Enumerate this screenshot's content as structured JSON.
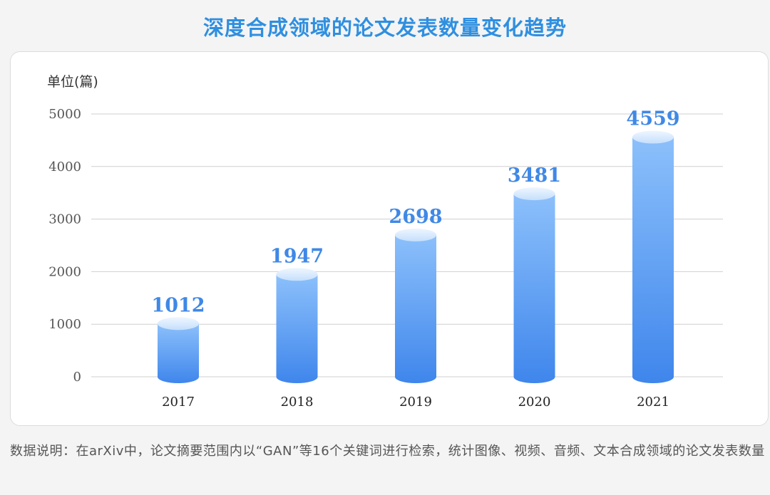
{
  "title": "深度合成领域的论文发表数量变化趋势",
  "note": "数据说明：在arXiv中，论文摘要范围内以“GAN”等16个关键词进行检索，统计图像、视频、音频、文本合成领域的论文发表数量",
  "colors": {
    "title": "#2f8fe0",
    "bar_top": "#8cc0fb",
    "bar_bottom": "#3f86ec",
    "data_label": "#3f88e6",
    "grid": "#cfcfcf"
  },
  "chart_data": {
    "type": "bar",
    "title": "深度合成领域的论文发表数量变化趋势",
    "ylabel": "单位(篇)",
    "xlabel": "",
    "categories": [
      "2017",
      "2018",
      "2019",
      "2020",
      "2021"
    ],
    "values": [
      1012,
      1947,
      2698,
      3481,
      4559
    ],
    "data_labels": [
      "1012",
      "1947",
      "2698",
      "3481",
      "4559"
    ],
    "yticks": [
      0,
      1000,
      2000,
      3000,
      4000,
      5000
    ],
    "ytick_labels": [
      "0",
      "1000",
      "2000",
      "3000",
      "4000",
      "5000"
    ],
    "ylim": [
      0,
      5000
    ],
    "grid": true,
    "style": "cylinder"
  }
}
